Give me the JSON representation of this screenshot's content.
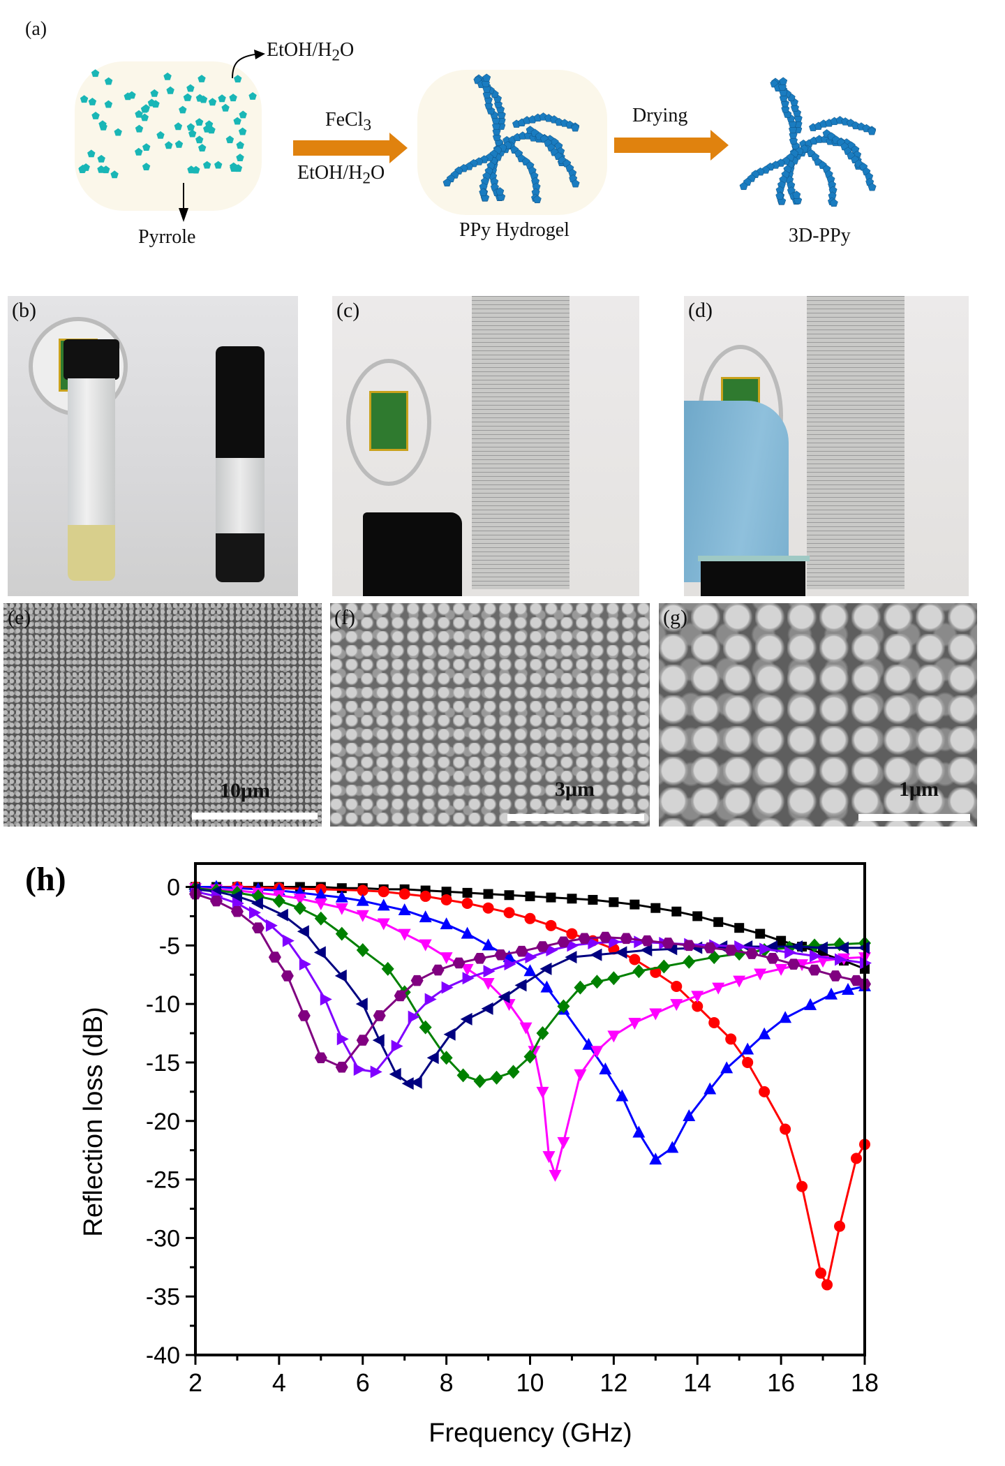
{
  "scheme": {
    "panel_label": "(a)",
    "solvent_label": "EtOH/H",
    "solvent_sub": "2",
    "solvent_tail": "O",
    "monomer_label": "Pyrrole",
    "oxidant_label": "FeCl",
    "oxidant_sub": "3",
    "reaction_solvent": "EtOH/H",
    "reaction_solvent_sub": "2",
    "reaction_solvent_tail": "O",
    "hydrogel_label": "PPy Hydrogel",
    "drying_label": "Drying",
    "product_label": "3D-PPy",
    "colors": {
      "monomer": "#19b6b6",
      "polymer": "#1a7cc0",
      "arrow": "#e0820e",
      "vessel": "#fbf7ea"
    }
  },
  "photos": [
    {
      "label": "(b)"
    },
    {
      "label": "(c)"
    },
    {
      "label": "(d)"
    }
  ],
  "sem": [
    {
      "label": "(e)",
      "scale": "10μm"
    },
    {
      "label": "(f)",
      "scale": "3μm"
    },
    {
      "label": "(g)",
      "scale": "1μm"
    }
  ],
  "chart_data": {
    "type": "line",
    "panel_label": "(h)",
    "xlabel": "Frequency (GHz)",
    "ylabel": "Reflection loss (dB)",
    "xlim": [
      2,
      18
    ],
    "ylim": [
      -40,
      2
    ],
    "xticks": [
      "2",
      "4",
      "6",
      "8",
      "10",
      "12",
      "14",
      "16",
      "18"
    ],
    "yticks": [
      "0",
      "-5",
      "-10",
      "-15",
      "-20",
      "-25",
      "-30",
      "-35",
      "-40"
    ],
    "grid": false,
    "series": [
      {
        "name": "black-squares",
        "color": "#000000",
        "marker": "square",
        "x": [
          2,
          2.5,
          3,
          3.5,
          4,
          4.5,
          5,
          5.5,
          6,
          6.5,
          7,
          7.5,
          8,
          8.5,
          9,
          9.5,
          10,
          10.5,
          11,
          11.5,
          12,
          12.5,
          13,
          13.5,
          14,
          14.5,
          15,
          15.5,
          16,
          16.5,
          17,
          17.5,
          18
        ],
        "y": [
          0,
          0,
          0,
          0,
          0,
          0,
          0,
          -0.1,
          -0.1,
          -0.2,
          -0.2,
          -0.3,
          -0.4,
          -0.5,
          -0.6,
          -0.7,
          -0.8,
          -0.9,
          -1.0,
          -1.1,
          -1.3,
          -1.5,
          -1.8,
          -2.1,
          -2.5,
          -3.0,
          -3.5,
          -4.0,
          -4.6,
          -5.1,
          -5.7,
          -6.3,
          -7.0
        ]
      },
      {
        "name": "red-circles",
        "color": "#ff0000",
        "marker": "circle",
        "x": [
          2,
          3,
          4,
          5,
          6,
          6.5,
          7,
          7.5,
          8,
          8.5,
          9,
          9.5,
          10,
          10.5,
          11,
          11.5,
          12,
          12.5,
          13,
          13.5,
          14,
          14.4,
          14.8,
          15.2,
          15.6,
          16.1,
          16.5,
          16.95,
          17.1,
          17.4,
          17.8,
          18
        ],
        "y": [
          0,
          0,
          -0.1,
          -0.2,
          -0.3,
          -0.4,
          -0.6,
          -0.8,
          -1.1,
          -1.4,
          -1.8,
          -2.2,
          -2.7,
          -3.3,
          -4.0,
          -4.6,
          -5.3,
          -6.2,
          -7.3,
          -8.5,
          -10.2,
          -11.6,
          -13.0,
          -15.0,
          -17.5,
          -20.7,
          -25.6,
          -33.0,
          -34.0,
          -29.0,
          -23.2,
          -22.0
        ]
      },
      {
        "name": "blue-up-triangles",
        "color": "#0000ff",
        "marker": "up",
        "x": [
          2,
          2.5,
          3,
          3.5,
          4,
          4.5,
          5,
          5.5,
          6,
          6.5,
          7,
          7.5,
          8,
          8.5,
          9,
          9.5,
          10,
          10.4,
          10.8,
          11.4,
          11.8,
          12.2,
          12.6,
          13,
          13.4,
          13.8,
          14.3,
          14.7,
          15.2,
          15.6,
          16.1,
          16.7,
          17.2,
          17.6,
          18
        ],
        "y": [
          0,
          0,
          -0.1,
          -0.2,
          -0.3,
          -0.5,
          -0.7,
          -0.9,
          -1.2,
          -1.6,
          -2.0,
          -2.6,
          -3.2,
          -4.0,
          -5.0,
          -6.0,
          -7.2,
          -8.6,
          -10.5,
          -13.5,
          -15.6,
          -17.9,
          -21.0,
          -23.3,
          -22.3,
          -19.6,
          -17.3,
          -15.5,
          -13.9,
          -12.6,
          -11.2,
          -10.1,
          -9.2,
          -8.8,
          -8.5
        ]
      },
      {
        "name": "magenta-down-triangles",
        "color": "#ff00ff",
        "marker": "down",
        "x": [
          2,
          2.5,
          3,
          3.5,
          4,
          4.5,
          5,
          5.5,
          6,
          6.5,
          7,
          7.5,
          8,
          8.5,
          9,
          9.5,
          9.9,
          10.1,
          10.3,
          10.45,
          10.6,
          10.8,
          11.2,
          11.6,
          12,
          12.5,
          13,
          13.5,
          14,
          14.5,
          15,
          15.5,
          16,
          16.5,
          17,
          17.5,
          18
        ],
        "y": [
          -0.1,
          -0.2,
          -0.3,
          -0.5,
          -0.7,
          -1.0,
          -1.4,
          -1.8,
          -2.4,
          -3.1,
          -4.0,
          -4.9,
          -6.0,
          -7.0,
          -8.2,
          -10.0,
          -12.0,
          -14.0,
          -17.5,
          -23.0,
          -24.6,
          -21.8,
          -16.0,
          -14.0,
          -12.7,
          -11.6,
          -10.8,
          -10.0,
          -9.3,
          -8.6,
          -8.0,
          -7.4,
          -7.0,
          -6.6,
          -6.3,
          -6.1,
          -6.0
        ]
      },
      {
        "name": "green-diamonds",
        "color": "#008000",
        "marker": "diamond",
        "x": [
          2,
          2.5,
          3,
          3.5,
          4,
          4.5,
          5,
          5.5,
          6,
          6.6,
          7,
          7.5,
          8,
          8.4,
          8.8,
          9.2,
          9.6,
          10,
          10.3,
          10.8,
          11.2,
          11.6,
          12,
          12.6,
          13.2,
          13.8,
          14.4,
          15,
          15.6,
          16.2,
          16.8,
          17.4,
          18
        ],
        "y": [
          -0.1,
          -0.3,
          -0.5,
          -0.8,
          -1.2,
          -1.8,
          -2.7,
          -4.0,
          -5.4,
          -7.0,
          -9.0,
          -12.0,
          -14.6,
          -16.1,
          -16.6,
          -16.3,
          -15.8,
          -14.5,
          -12.5,
          -10.2,
          -8.6,
          -8.1,
          -7.8,
          -7.2,
          -6.8,
          -6.4,
          -6.0,
          -5.7,
          -5.4,
          -5.2,
          -5.0,
          -4.9,
          -4.8
        ]
      },
      {
        "name": "navy-left-triangles",
        "color": "#000080",
        "marker": "left",
        "x": [
          2,
          2.5,
          3,
          3.5,
          4.1,
          4.6,
          5,
          5.5,
          6,
          6.4,
          6.8,
          7.1,
          7.3,
          7.7,
          8.1,
          8.5,
          9,
          9.4,
          9.8,
          10.4,
          11,
          11.6,
          12.2,
          12.8,
          13.4,
          14,
          14.6,
          15.2,
          15.8,
          16.4,
          17,
          17.5,
          18
        ],
        "y": [
          -0.2,
          -0.4,
          -0.8,
          -1.4,
          -2.4,
          -3.8,
          -5.6,
          -7.6,
          -10.0,
          -13.1,
          -16.0,
          -16.8,
          -16.7,
          -14.6,
          -12.6,
          -11.3,
          -10.4,
          -9.4,
          -8.4,
          -7.0,
          -6.0,
          -5.8,
          -5.6,
          -5.4,
          -5.3,
          -5.2,
          -5.1,
          -5.1,
          -5.1,
          -5.1,
          -5.2,
          -5.2,
          -5.2
        ]
      },
      {
        "name": "violet-right-triangles",
        "color": "#8000ff",
        "marker": "right",
        "x": [
          2,
          2.5,
          3,
          3.4,
          3.8,
          4.2,
          4.6,
          5.1,
          5.5,
          5.9,
          6.3,
          6.8,
          7.2,
          7.6,
          8,
          8.5,
          9,
          9.5,
          10,
          10.5,
          11,
          11.5,
          12,
          12.6,
          13.2,
          13.8,
          14.4,
          15,
          15.6,
          16.2,
          16.8,
          17.4,
          18
        ],
        "y": [
          -0.4,
          -0.8,
          -1.4,
          -2.2,
          -3.3,
          -4.6,
          -6.6,
          -9.6,
          -13.0,
          -15.6,
          -15.8,
          -13.6,
          -11.1,
          -9.6,
          -8.6,
          -7.8,
          -7.2,
          -6.6,
          -6.0,
          -5.4,
          -5.0,
          -4.8,
          -4.7,
          -4.7,
          -4.8,
          -4.9,
          -5.0,
          -5.1,
          -5.3,
          -5.6,
          -5.9,
          -6.2,
          -6.5
        ]
      },
      {
        "name": "purple-hexagons",
        "color": "#800080",
        "marker": "hexagon",
        "x": [
          2,
          2.5,
          3,
          3.5,
          3.9,
          4.2,
          4.6,
          5,
          5.5,
          6,
          6.4,
          6.9,
          7.3,
          7.8,
          8.3,
          8.8,
          9.3,
          9.8,
          10.3,
          10.8,
          11.3,
          11.8,
          12.3,
          12.8,
          13.3,
          13.8,
          14.3,
          14.8,
          15.3,
          15.8,
          16.3,
          16.8,
          17.3,
          17.8,
          18
        ],
        "y": [
          -0.6,
          -1.2,
          -2.1,
          -3.5,
          -6.0,
          -7.6,
          -11.0,
          -14.6,
          -15.4,
          -13.1,
          -11.0,
          -9.3,
          -8.0,
          -7.1,
          -6.5,
          -6.1,
          -5.8,
          -5.5,
          -5.1,
          -4.7,
          -4.4,
          -4.3,
          -4.4,
          -4.6,
          -4.8,
          -5.0,
          -5.2,
          -5.4,
          -5.7,
          -6.1,
          -6.6,
          -7.1,
          -7.6,
          -8.0,
          -8.3
        ]
      }
    ]
  }
}
